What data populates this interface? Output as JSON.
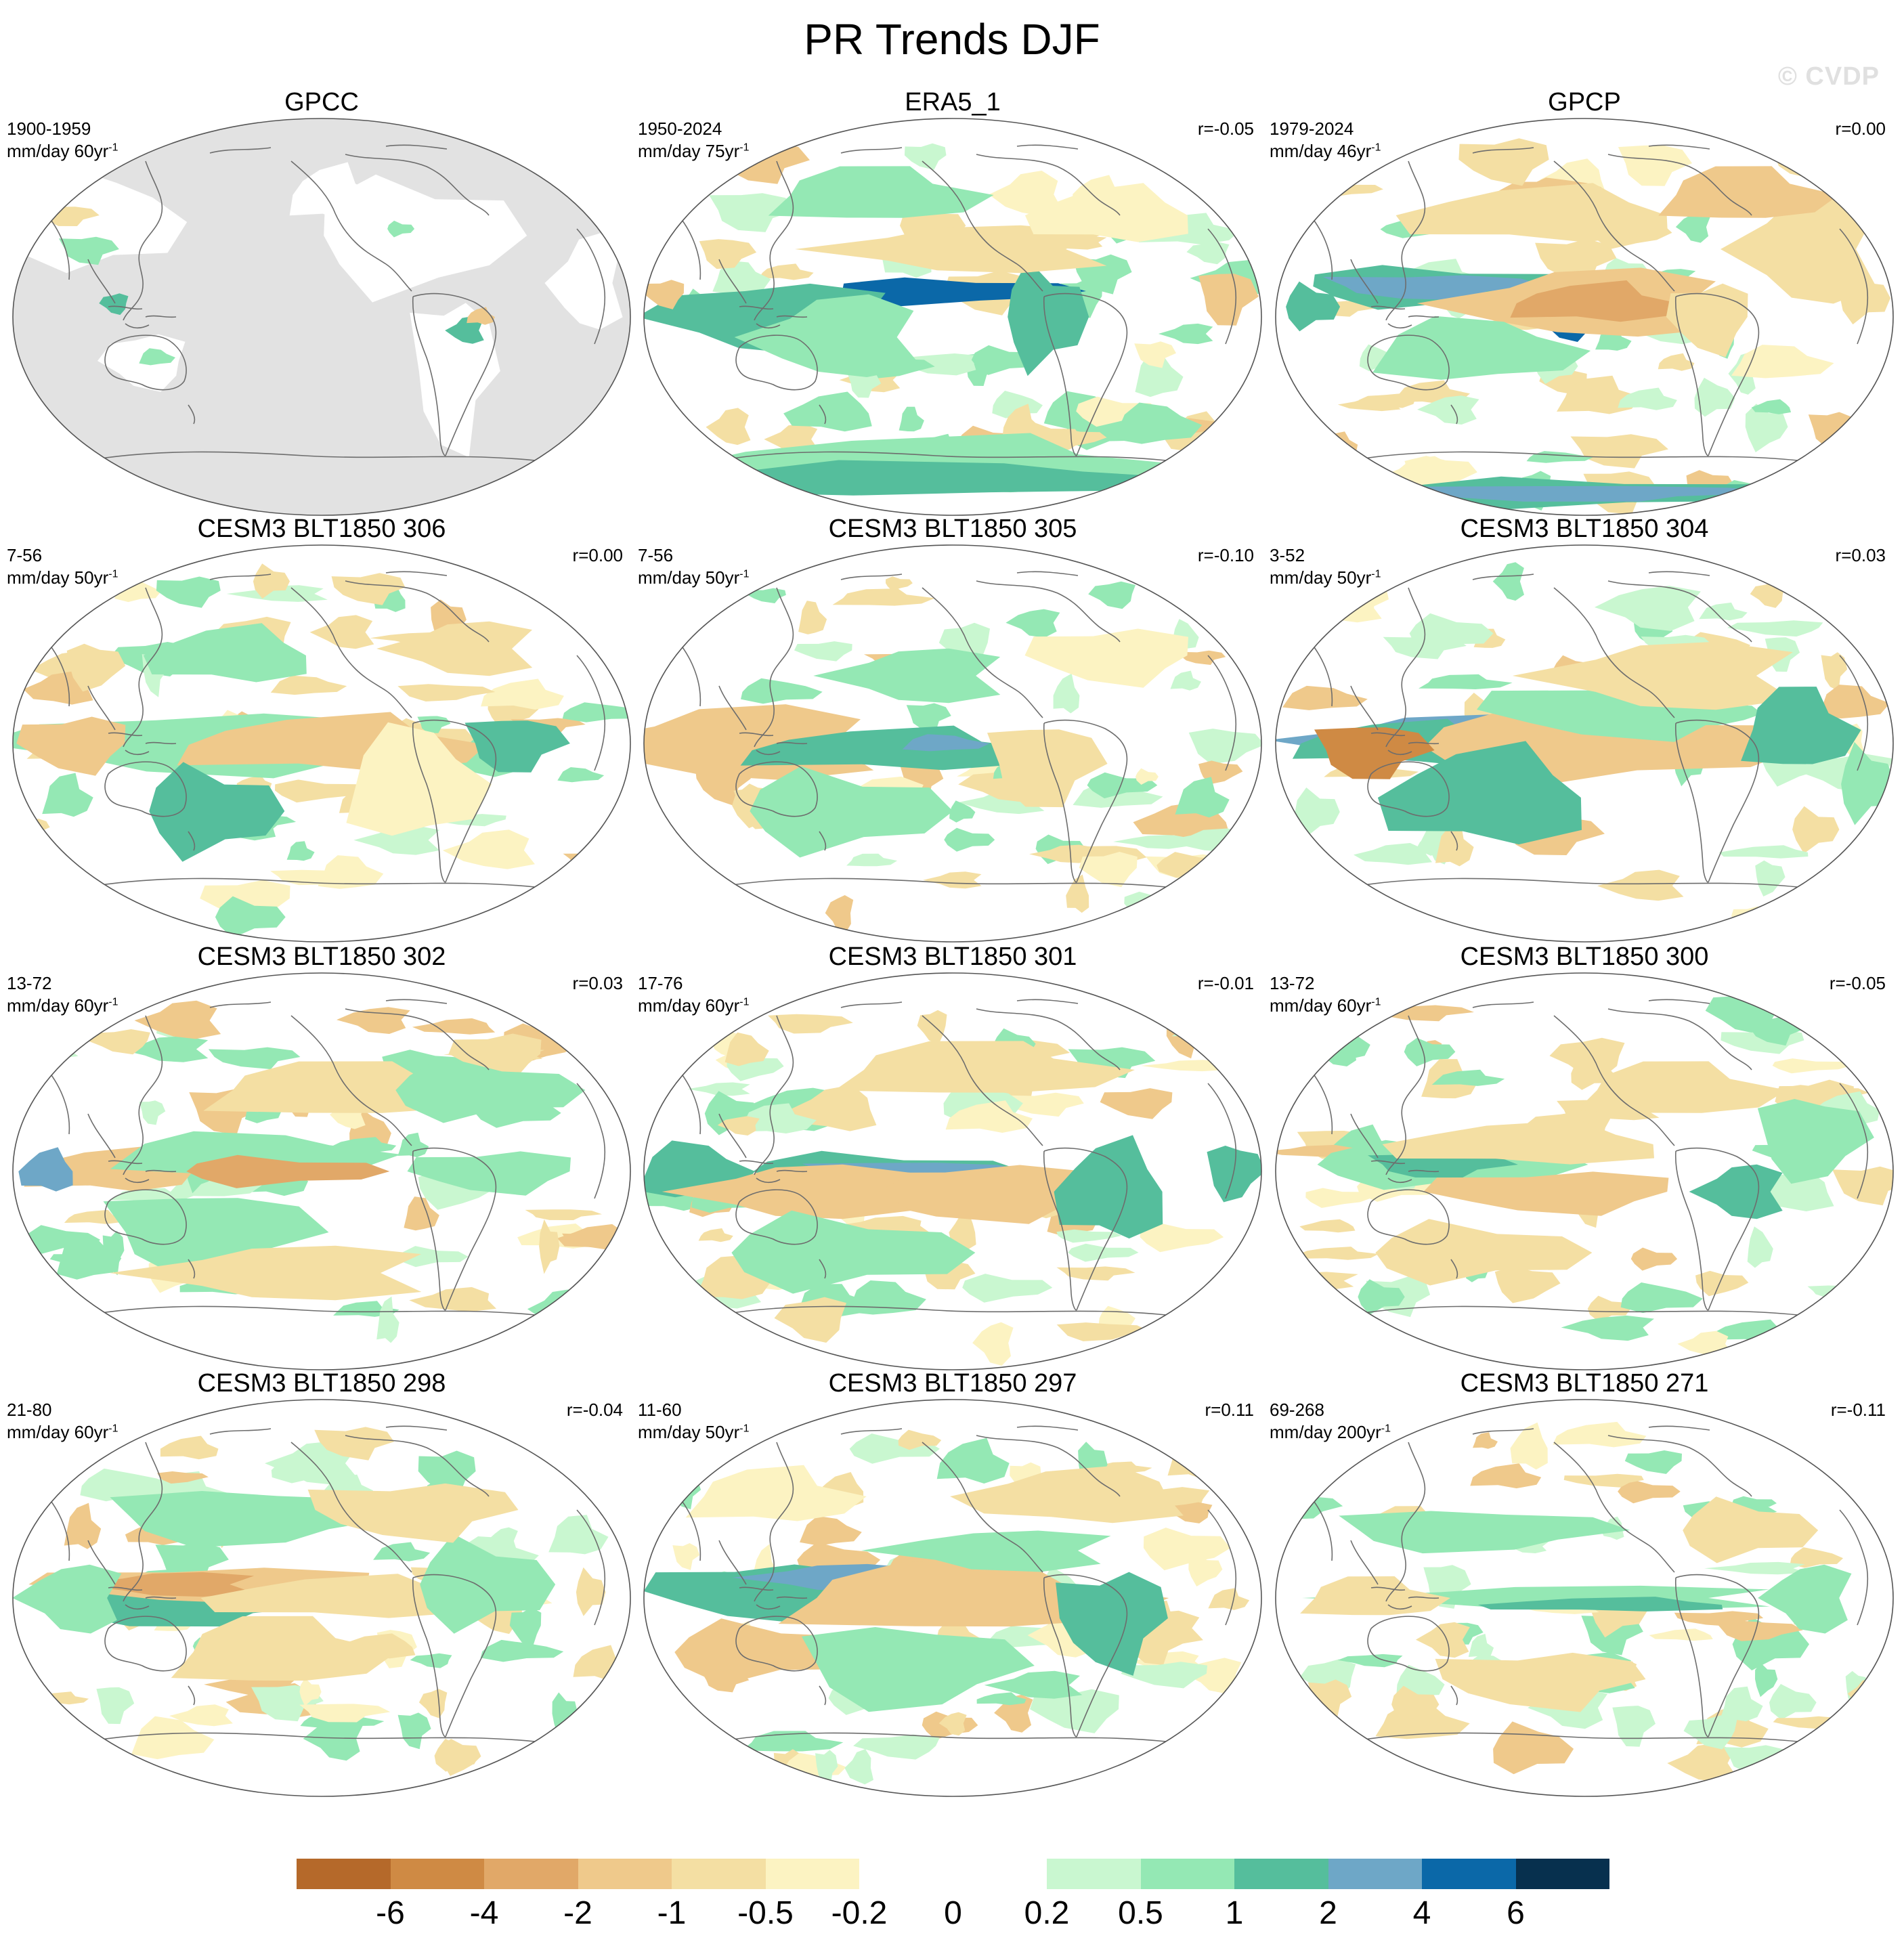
{
  "figure": {
    "title": "PR Trends DJF",
    "watermark": "© CVDP"
  },
  "colorbar": {
    "colors": [
      "#b5692a",
      "#cf8a44",
      "#e1a868",
      "#efc98b",
      "#f4dfa3",
      "#fcf3c2",
      "#ffffff",
      "#ffffff",
      "#c9f7d0",
      "#94e8b4",
      "#55be9c",
      "#6ea7c7",
      "#0b68a8",
      "#07304e"
    ],
    "labels": [
      "-6",
      "-4",
      "-2",
      "-1",
      "-0.5",
      "-0.2",
      "0",
      "0.2",
      "0.5",
      "1",
      "2",
      "4",
      "6"
    ]
  },
  "panels": [
    {
      "title": "GPCC",
      "period": "1900-1959",
      "units": "mm/day 60yr",
      "exponent": "-1",
      "r": "",
      "dataset": "gpcc"
    },
    {
      "title": "ERA5_1",
      "period": "1950-2024",
      "units": "mm/day 75yr",
      "exponent": "-1",
      "r": "r=-0.05",
      "dataset": "era5"
    },
    {
      "title": "GPCP",
      "period": "1979-2024",
      "units": "mm/day 46yr",
      "exponent": "-1",
      "r": "r=0.00",
      "dataset": "gpcp"
    },
    {
      "title": "CESM3 BLT1850 306",
      "period": "7-56",
      "units": "mm/day 50yr",
      "exponent": "-1",
      "r": "r=0.00",
      "dataset": "m306"
    },
    {
      "title": "CESM3 BLT1850 305",
      "period": "7-56",
      "units": "mm/day 50yr",
      "exponent": "-1",
      "r": "r=-0.10",
      "dataset": "m305"
    },
    {
      "title": "CESM3 BLT1850 304",
      "period": "3-52",
      "units": "mm/day 50yr",
      "exponent": "-1",
      "r": "r=0.03",
      "dataset": "m304"
    },
    {
      "title": "CESM3 BLT1850 302",
      "period": "13-72",
      "units": "mm/day 60yr",
      "exponent": "-1",
      "r": "r=0.03",
      "dataset": "m302"
    },
    {
      "title": "CESM3 BLT1850 301",
      "period": "17-76",
      "units": "mm/day 60yr",
      "exponent": "-1",
      "r": "r=-0.01",
      "dataset": "m301"
    },
    {
      "title": "CESM3 BLT1850 300",
      "period": "13-72",
      "units": "mm/day 60yr",
      "exponent": "-1",
      "r": "r=-0.05",
      "dataset": "m300"
    },
    {
      "title": "CESM3 BLT1850 298",
      "period": "21-80",
      "units": "mm/day 60yr",
      "exponent": "-1",
      "r": "r=-0.04",
      "dataset": "m298"
    },
    {
      "title": "CESM3 BLT1850 297",
      "period": "11-60",
      "units": "mm/day 50yr",
      "exponent": "-1",
      "r": "r=0.11",
      "dataset": "m297"
    },
    {
      "title": "CESM3 BLT1850 271",
      "period": "69-268",
      "units": "mm/day 200yr",
      "exponent": "-1",
      "r": "r=-0.11",
      "dataset": "m271"
    }
  ]
}
